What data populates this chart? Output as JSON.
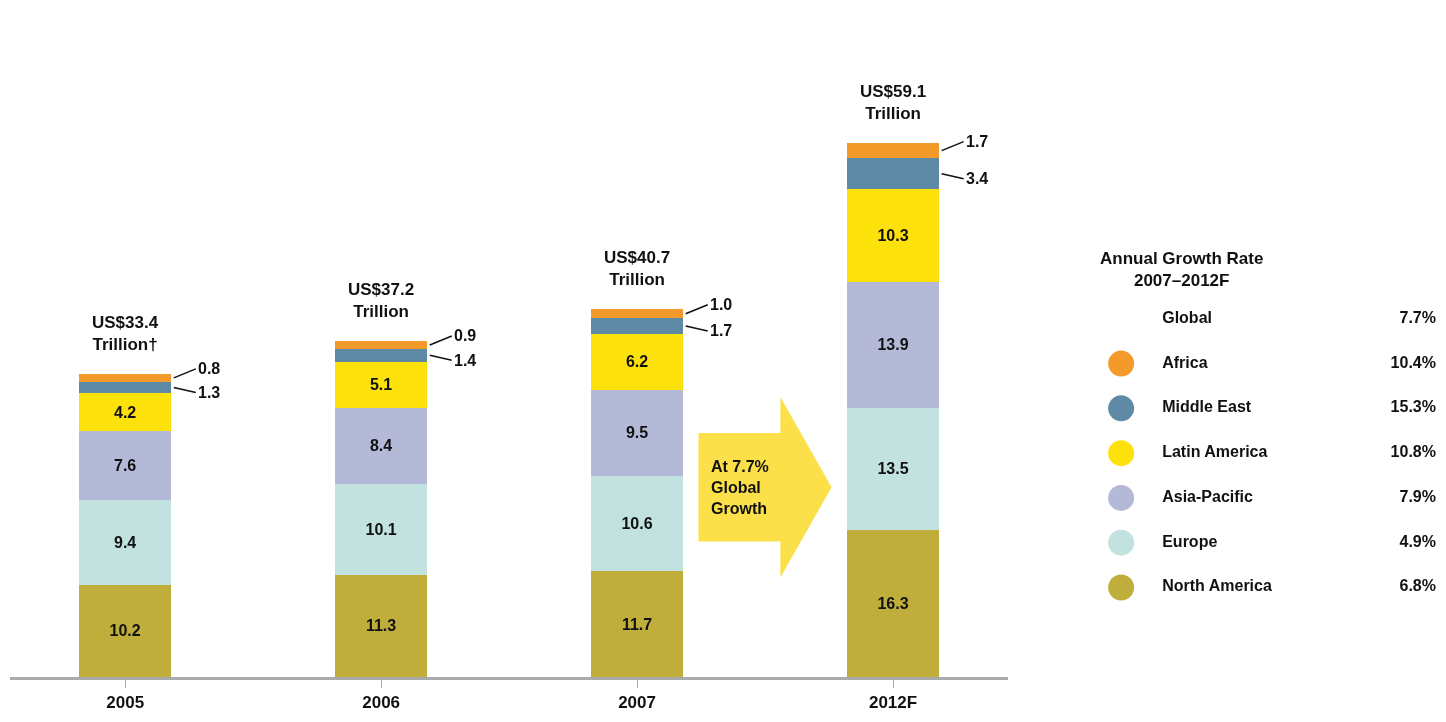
{
  "chart_data": {
    "type": "bar",
    "stacked": true,
    "categories": [
      "2005",
      "2006",
      "2007",
      "2012F"
    ],
    "series": [
      {
        "name": "North America",
        "color": "#bfae3b",
        "values": [
          10.2,
          11.3,
          11.7,
          16.3
        ],
        "value_labels": [
          "10.2",
          "11.3",
          "11.7",
          "16.3"
        ]
      },
      {
        "name": "Europe",
        "color": "#c1e2df",
        "values": [
          9.4,
          10.1,
          10.6,
          13.5
        ],
        "value_labels": [
          "9.4",
          "10.1",
          "10.6",
          "13.5"
        ]
      },
      {
        "name": "Asia-Pacific",
        "color": "#b4b9d8",
        "values": [
          7.6,
          8.4,
          9.5,
          13.9
        ],
        "value_labels": [
          "7.6",
          "8.4",
          "9.5",
          "13.9"
        ]
      },
      {
        "name": "Latin America",
        "color": "#fde10a",
        "values": [
          4.2,
          5.1,
          6.2,
          10.3
        ],
        "value_labels": [
          "4.2",
          "5.1",
          "6.2",
          "10.3"
        ]
      },
      {
        "name": "Middle East",
        "color": "#5e8aa6",
        "values": [
          1.3,
          1.4,
          1.7,
          3.4
        ],
        "value_labels": [
          "1.3",
          "1.4",
          "1.7",
          "3.4"
        ]
      },
      {
        "name": "Africa",
        "color": "#f39a2b",
        "values": [
          0.8,
          0.9,
          1.0,
          1.7
        ],
        "value_labels": [
          "0.8",
          "0.9",
          "1.0",
          "1.7"
        ]
      }
    ],
    "totals": [
      "US$33.4\nTrillion†",
      "US$37.2\nTrillion",
      "US$40.7\nTrillion",
      "US$59.1\nTrillion"
    ],
    "legend": "right",
    "legend_title": "Annual Growth Rate\n2007–2012F",
    "tick_labels": "x",
    "annotations": [
      "At 7.7%\nGlobal\nGrowth",
      "Global",
      "7.7%",
      "10.4%",
      "15.3%",
      "10.8%",
      "7.9%",
      "4.9%",
      "6.8%"
    ]
  }
}
